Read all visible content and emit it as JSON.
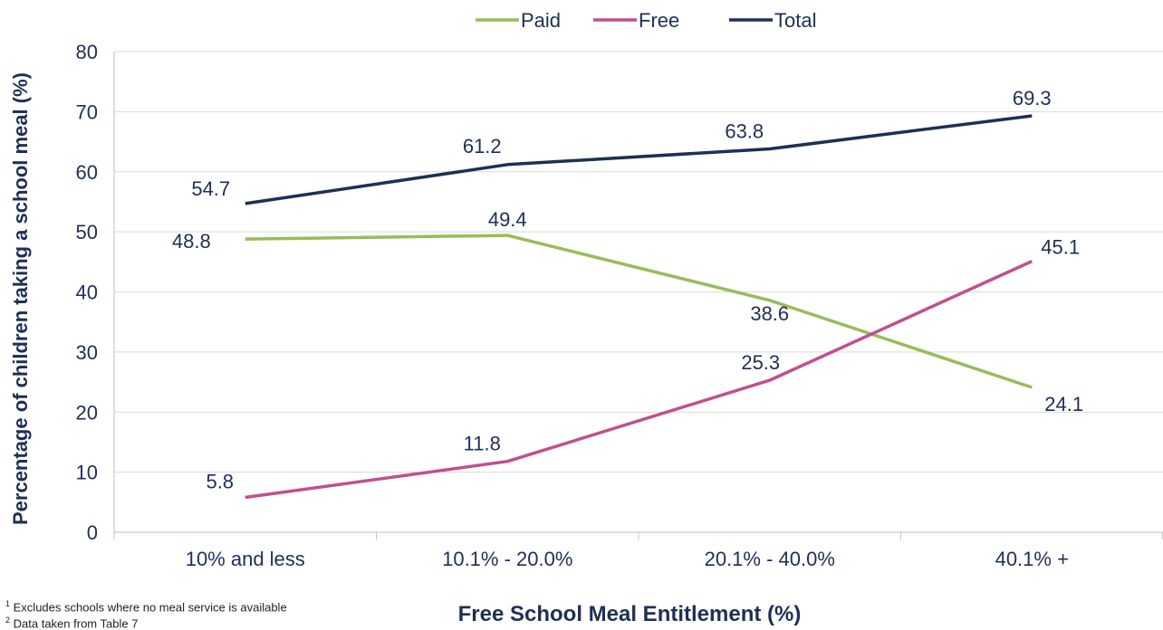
{
  "chart_data": {
    "type": "line",
    "categories": [
      "10% and less",
      "10.1% - 20.0%",
      "20.1% - 40.0%",
      "40.1% +"
    ],
    "series": [
      {
        "name": "Paid",
        "color": "#9bbb59",
        "values": [
          48.8,
          49.4,
          38.6,
          24.1
        ]
      },
      {
        "name": "Free",
        "color": "#c0508e",
        "values": [
          5.8,
          11.8,
          25.3,
          45.1
        ]
      },
      {
        "name": "Total",
        "color": "#1f2f55",
        "values": [
          54.7,
          61.2,
          63.8,
          69.3
        ]
      }
    ],
    "xlabel": "Free School Meal Entitlement (%)",
    "ylabel": "Percentage of children taking a school meal (%)",
    "ylim": [
      0,
      80
    ],
    "yticks": [
      0,
      10,
      20,
      30,
      40,
      50,
      60,
      70,
      80
    ],
    "grid": true,
    "legend_position": "top-center"
  },
  "footnotes": {
    "note1_marker": "1",
    "note1_text": "Excludes schools where no meal service is available",
    "note2_marker": "2",
    "note2_text": "Data taken from Table 7"
  }
}
